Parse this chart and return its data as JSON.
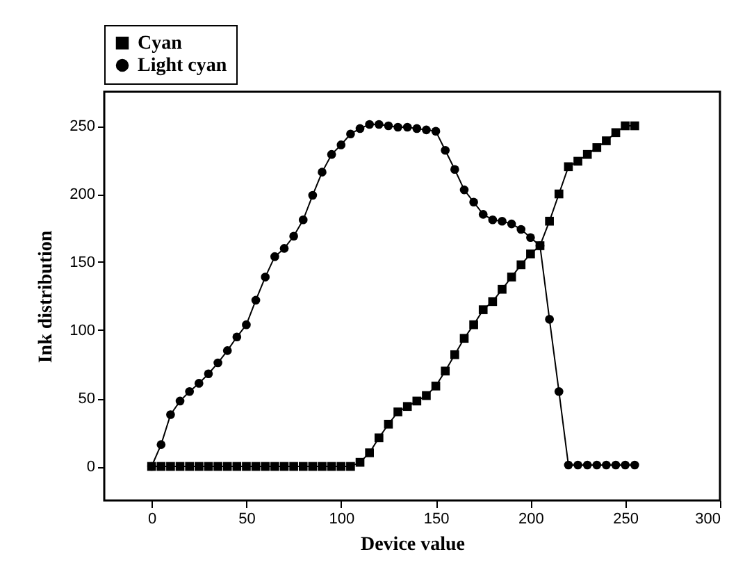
{
  "chart_data": {
    "type": "line",
    "xlabel": "Device value",
    "ylabel": "Ink distribution",
    "x": [
      0,
      5,
      10,
      15,
      20,
      25,
      30,
      35,
      40,
      45,
      50,
      55,
      60,
      65,
      70,
      75,
      80,
      85,
      90,
      95,
      100,
      105,
      110,
      115,
      120,
      125,
      130,
      135,
      140,
      145,
      150,
      155,
      160,
      165,
      170,
      175,
      180,
      185,
      190,
      195,
      200,
      205,
      210,
      215,
      220,
      225,
      230,
      235,
      240,
      245,
      250,
      255
    ],
    "series": [
      {
        "name": "Cyan",
        "color": "#000000",
        "marker": "square",
        "values": [
          0,
          0,
          0,
          0,
          0,
          0,
          0,
          0,
          0,
          0,
          0,
          0,
          0,
          0,
          0,
          0,
          0,
          0,
          0,
          0,
          0,
          0,
          3,
          10,
          21,
          31,
          40,
          44,
          48,
          52,
          59,
          70,
          82,
          94,
          104,
          115,
          121,
          130,
          139,
          148,
          156,
          162,
          180,
          200,
          220,
          224,
          229,
          234,
          239,
          245,
          250,
          250
        ]
      },
      {
        "name": "Light cyan",
        "color": "#000000",
        "marker": "circle",
        "values": [
          0,
          16,
          38,
          48,
          55,
          61,
          68,
          76,
          85,
          95,
          104,
          122,
          139,
          154,
          160,
          169,
          181,
          199,
          216,
          229,
          236,
          244,
          248,
          251,
          251,
          250,
          249,
          249,
          248,
          247,
          246,
          232,
          218,
          203,
          194,
          185,
          181,
          180,
          178,
          174,
          168,
          162,
          108,
          55,
          1,
          1,
          1,
          1,
          1,
          1,
          1,
          1
        ]
      }
    ],
    "xlim": [
      -25,
      300
    ],
    "xticks": [
      0,
      50,
      100,
      150,
      200,
      250,
      300
    ],
    "ylim": [
      -25,
      275
    ],
    "yticks": [
      0,
      50,
      100,
      150,
      200,
      250
    ],
    "grid": false,
    "legend": "top",
    "line_style": "solid"
  }
}
